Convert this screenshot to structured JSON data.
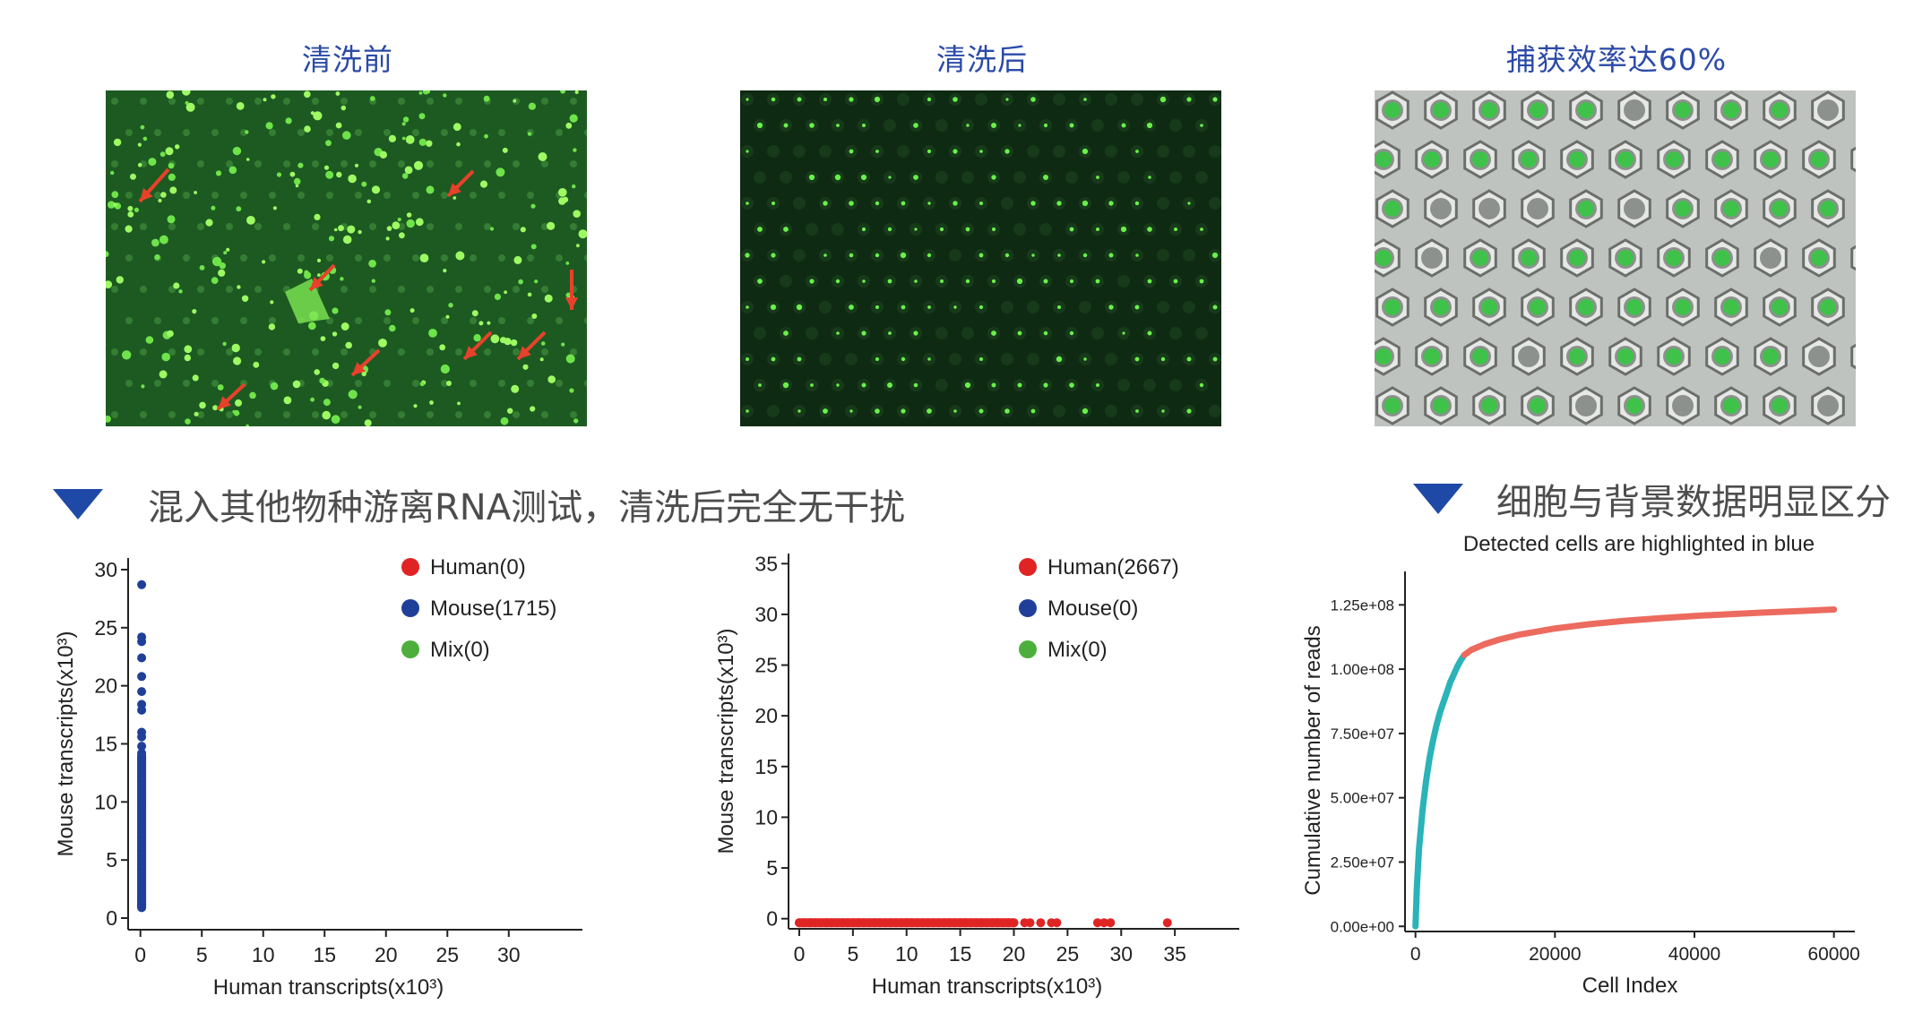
{
  "images": [
    {
      "title": "清洗前"
    },
    {
      "title": "清洗后"
    },
    {
      "title": "捕获效率达60%"
    }
  ],
  "section_left": {
    "heading": "混入其他物种游离RNA测试，清洗后完全无干扰"
  },
  "section_right": {
    "heading": "细胞与背景数据明显区分"
  },
  "colors": {
    "human": "#e02424",
    "mouse": "#1f3f99",
    "mix": "#4caf3c",
    "detected": "#2ab3b8",
    "background": "#ec6b5e",
    "accent": "#1f49a6",
    "title_blue": "#2b4aa8"
  },
  "chart_data": [
    {
      "type": "scatter",
      "xlabel": "Human transcripts(x10³)",
      "ylabel": "Mouse transcripts(x10³)",
      "xlim": [
        -1,
        36
      ],
      "ylim": [
        -1,
        31
      ],
      "xticks": [
        0,
        5,
        10,
        15,
        20,
        25,
        30
      ],
      "yticks": [
        0,
        5,
        10,
        15,
        20,
        25,
        30
      ],
      "legend": [
        {
          "label": "Human(0)",
          "color": "#e02424"
        },
        {
          "label": "Mouse(1715)",
          "color": "#1f3f99"
        },
        {
          "label": "Mix(0)",
          "color": "#4caf3c"
        }
      ],
      "series": [
        {
          "name": "Mouse",
          "color": "#1f3f99",
          "x": [
            0.1,
            0.1,
            0.1,
            0.1,
            0.1,
            0.1,
            0.1,
            0.1,
            0.1,
            0.1,
            0.1,
            0.1,
            0.1,
            0.1,
            0.1,
            0.1,
            0.1,
            0.1,
            0.1,
            0.1,
            0.1,
            0.1,
            0.1,
            0.1,
            0.1,
            0.1,
            0.1,
            0.1,
            0.1,
            0.1,
            0.1,
            0.1,
            0.1,
            0.1,
            0.1,
            0.1,
            0.1,
            0.1,
            0.1,
            0.1,
            0.1,
            0.1,
            0.1,
            0.1,
            0.1,
            0.1,
            0.1
          ],
          "y": [
            28.7,
            24.2,
            23.8,
            22.4,
            20.8,
            19.5,
            18.4,
            17.9,
            16.0,
            15.6,
            14.8,
            14.2,
            13.8,
            13.4,
            13.0,
            12.6,
            12.2,
            11.8,
            11.4,
            11.0,
            10.6,
            10.2,
            9.8,
            9.4,
            9.0,
            8.6,
            8.2,
            7.8,
            7.4,
            7.0,
            6.6,
            6.2,
            5.8,
            5.4,
            5.0,
            4.6,
            4.2,
            3.8,
            3.4,
            3.0,
            2.6,
            2.2,
            1.8,
            1.5,
            1.2,
            1.0,
            0.9
          ]
        }
      ]
    },
    {
      "type": "scatter",
      "xlabel": "Human transcripts(x10³)",
      "ylabel": "Mouse transcripts(x10³)",
      "xlim": [
        -1,
        41
      ],
      "ylim": [
        -1,
        36
      ],
      "xticks": [
        0,
        5,
        10,
        15,
        20,
        25,
        30,
        35
      ],
      "yticks": [
        0,
        5,
        10,
        15,
        20,
        25,
        30,
        35
      ],
      "legend": [
        {
          "label": "Human(2667)",
          "color": "#e02424"
        },
        {
          "label": "Mouse(0)",
          "color": "#1f3f99"
        },
        {
          "label": "Mix(0)",
          "color": "#4caf3c"
        }
      ],
      "series": [
        {
          "name": "Human",
          "color": "#e02424",
          "x": [
            0,
            0.5,
            1,
            1.5,
            2,
            2.5,
            3,
            3.5,
            4,
            4.5,
            5,
            5.5,
            6,
            6.5,
            7,
            7.5,
            8,
            8.5,
            9,
            9.5,
            10,
            10.5,
            11,
            11.5,
            12,
            12.5,
            13,
            13.5,
            14,
            14.5,
            15,
            15.5,
            16,
            16.5,
            17,
            17.5,
            18,
            18.5,
            19,
            19.5,
            20,
            21,
            21.5,
            22.5,
            23.5,
            24,
            27.8,
            28.4,
            29.0,
            34.3
          ],
          "y": [
            -0.4,
            -0.4,
            -0.4,
            -0.4,
            -0.4,
            -0.4,
            -0.4,
            -0.4,
            -0.4,
            -0.4,
            -0.4,
            -0.4,
            -0.4,
            -0.4,
            -0.4,
            -0.4,
            -0.4,
            -0.4,
            -0.4,
            -0.4,
            -0.4,
            -0.4,
            -0.4,
            -0.4,
            -0.4,
            -0.4,
            -0.4,
            -0.4,
            -0.4,
            -0.4,
            -0.4,
            -0.4,
            -0.4,
            -0.4,
            -0.4,
            -0.4,
            -0.4,
            -0.4,
            -0.4,
            -0.4,
            -0.4,
            -0.4,
            -0.4,
            -0.4,
            -0.4,
            -0.4,
            -0.4,
            -0.4,
            -0.4,
            -0.4
          ]
        }
      ]
    },
    {
      "type": "line",
      "title": "Detected cells are highlighted in blue",
      "xlabel": "Cell Index",
      "ylabel": "Cumulative number of reads",
      "xlim": [
        -1500,
        63000
      ],
      "ylim": [
        -2000000,
        138000000
      ],
      "xticks": [
        0,
        20000,
        40000,
        60000
      ],
      "ytick_values": [
        0,
        25000000,
        50000000,
        75000000,
        100000000,
        125000000
      ],
      "ytick_labels": [
        "0.00e+00",
        "2.50e+07",
        "5.00e+07",
        "7.50e+07",
        "1.00e+08",
        "1.25e+08"
      ],
      "series": [
        {
          "name": "Detected cells",
          "color": "#2ab3b8",
          "x": [
            0,
            200,
            500,
            1000,
            1500,
            2000,
            2500,
            3000,
            3500,
            4000,
            4500,
            5000,
            5500,
            6000,
            6500,
            7000
          ],
          "y": [
            0,
            15000000,
            30000000,
            45000000,
            56000000,
            65000000,
            72000000,
            78000000,
            83000000,
            87000000,
            91000000,
            95000000,
            98000000,
            101000000,
            103500000,
            105500000
          ]
        },
        {
          "name": "Background",
          "color": "#ec6b5e",
          "x": [
            7000,
            8000,
            10000,
            12000,
            15000,
            20000,
            25000,
            30000,
            35000,
            40000,
            45000,
            50000,
            55000,
            60000
          ],
          "y": [
            105500000,
            107500000,
            109800000,
            111500000,
            113500000,
            115800000,
            117500000,
            118800000,
            119800000,
            120700000,
            121400000,
            122000000,
            122600000,
            123200000
          ]
        }
      ]
    }
  ]
}
